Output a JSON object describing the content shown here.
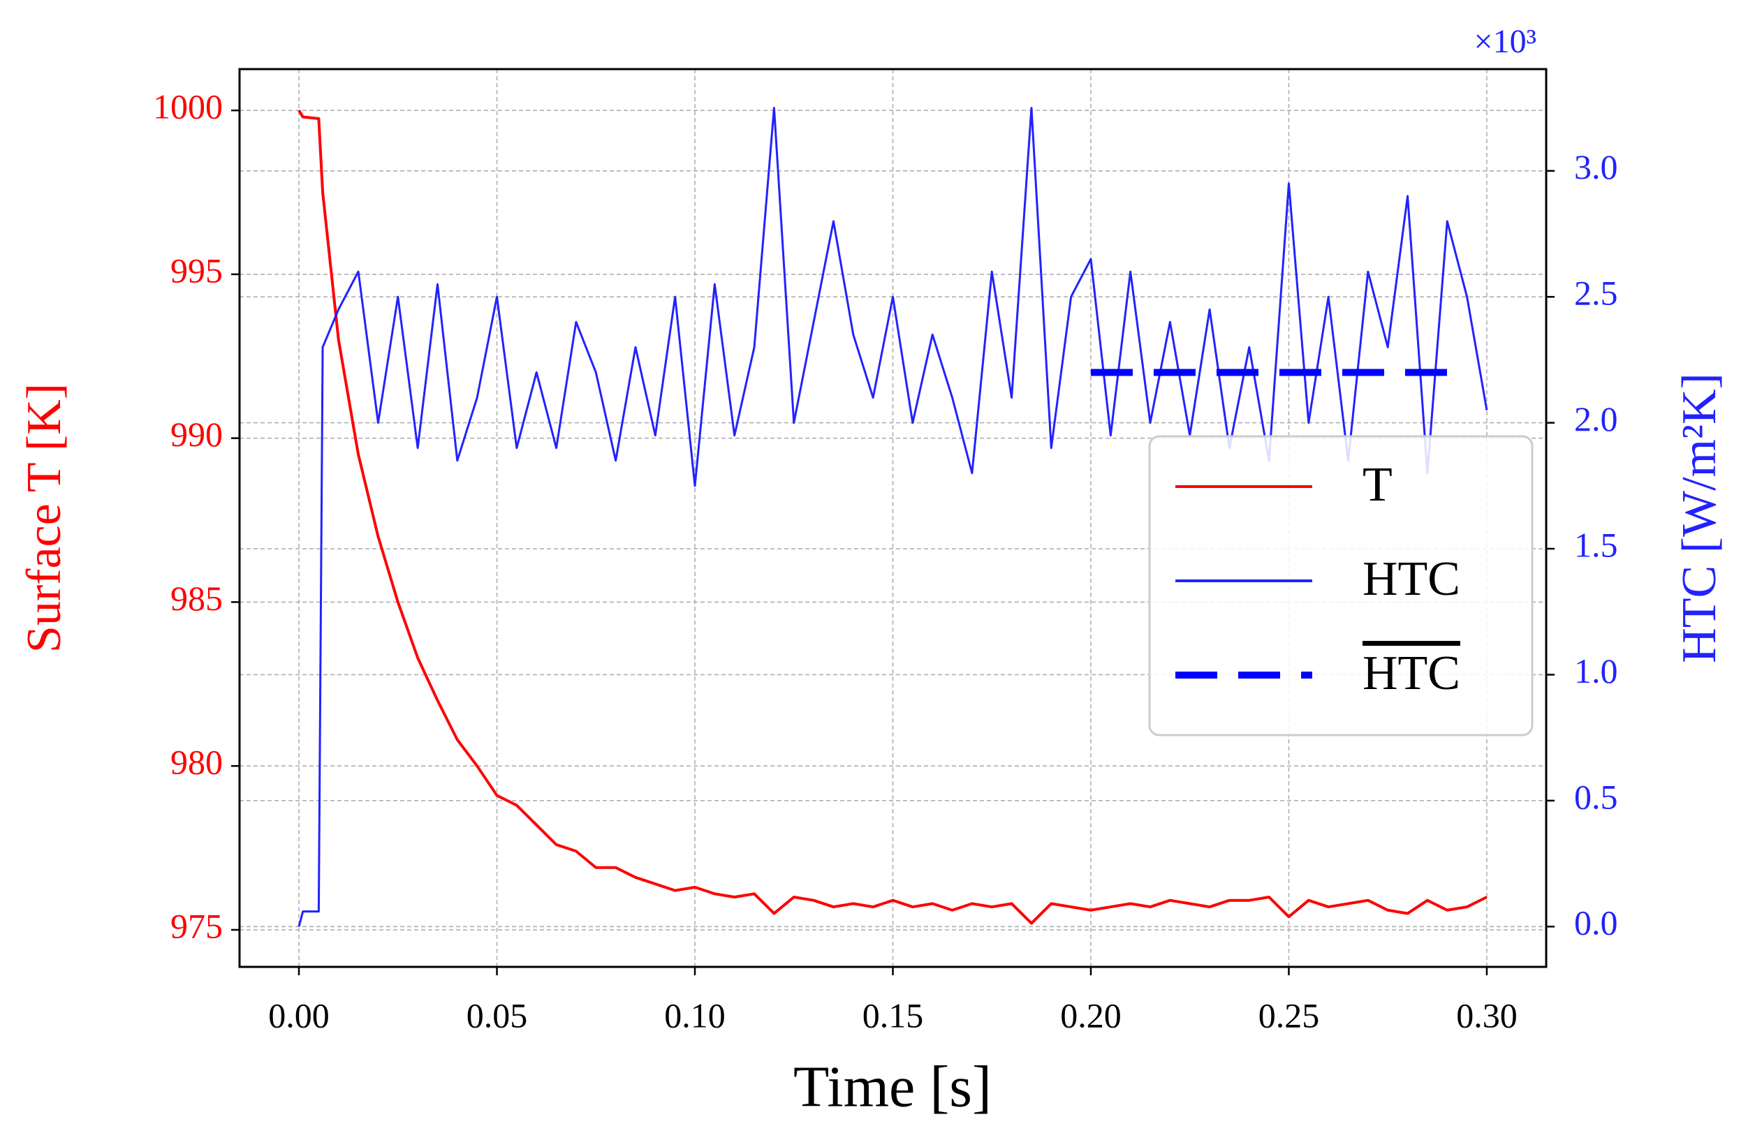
{
  "chart_data": {
    "type": "line",
    "xlabel": "Time [s]",
    "ylabel": "Surface T [K]",
    "y2label": "HTC [W/m²K]",
    "y2_offset_text": "×10³",
    "x": [
      0,
      0.001,
      0.005,
      0.006,
      0.01,
      0.015,
      0.02,
      0.025,
      0.03,
      0.035,
      0.04,
      0.045,
      0.05,
      0.055,
      0.06,
      0.065,
      0.07,
      0.075,
      0.08,
      0.085,
      0.09,
      0.095,
      0.1,
      0.105,
      0.11,
      0.115,
      0.12,
      0.125,
      0.13,
      0.135,
      0.14,
      0.145,
      0.15,
      0.155,
      0.16,
      0.165,
      0.17,
      0.175,
      0.18,
      0.185,
      0.19,
      0.195,
      0.2,
      0.205,
      0.21,
      0.215,
      0.22,
      0.225,
      0.23,
      0.235,
      0.24,
      0.245,
      0.25,
      0.255,
      0.26,
      0.265,
      0.27,
      0.275,
      0.28,
      0.285,
      0.29,
      0.295,
      0.3
    ],
    "series": [
      {
        "name": "T",
        "color": "#ff0000",
        "style": "solid",
        "values": [
          1000,
          999.8,
          999.75,
          997.5,
          993.0,
          989.5,
          987.0,
          985.0,
          983.3,
          982.0,
          980.8,
          980.0,
          979.1,
          978.8,
          978.2,
          977.6,
          977.4,
          976.9,
          976.9,
          976.6,
          976.4,
          976.2,
          976.3,
          976.1,
          976.0,
          976.1,
          975.5,
          976.0,
          975.9,
          975.7,
          975.8,
          975.7,
          975.9,
          975.7,
          975.8,
          975.6,
          975.8,
          975.7,
          975.8,
          975.2,
          975.8,
          975.7,
          975.6,
          975.7,
          975.8,
          975.7,
          975.9,
          975.8,
          975.7,
          975.9,
          975.9,
          976.0,
          975.4,
          975.9,
          975.7,
          975.8,
          975.9,
          975.6,
          975.5,
          975.9,
          975.6,
          975.7,
          976.0
        ]
      },
      {
        "name": "HTC",
        "color": "#2222ff",
        "style": "solid",
        "axis": "y2",
        "values": [
          0.0,
          0.06,
          0.06,
          2.3,
          2.45,
          2.6,
          2.0,
          2.5,
          1.9,
          2.55,
          1.85,
          2.1,
          2.5,
          1.9,
          2.2,
          1.9,
          2.4,
          2.2,
          1.85,
          2.3,
          1.95,
          2.5,
          1.75,
          2.55,
          1.95,
          2.3,
          3.25,
          2.0,
          2.4,
          2.8,
          2.35,
          2.1,
          2.5,
          2.0,
          2.35,
          2.1,
          1.8,
          2.6,
          2.1,
          3.25,
          1.9,
          2.5,
          2.65,
          1.95,
          2.6,
          2.0,
          2.4,
          1.95,
          2.45,
          1.9,
          2.3,
          1.85,
          2.95,
          2.0,
          2.5,
          1.85,
          2.6,
          2.3,
          2.9,
          1.8,
          2.8,
          2.5,
          2.05
        ]
      },
      {
        "name": "HTC",
        "name_overline": true,
        "color": "#0000ff",
        "style": "dashed",
        "axis": "y2",
        "x": [
          0.2,
          0.295
        ],
        "values": [
          2.2,
          2.2
        ]
      }
    ],
    "xlim": [
      -0.015,
      0.315
    ],
    "xticks": [
      {
        "value": 0,
        "label": "0.00"
      },
      {
        "value": 0.05,
        "label": "0.05"
      },
      {
        "value": 0.1,
        "label": "0.10"
      },
      {
        "value": 0.15,
        "label": "0.15"
      },
      {
        "value": 0.2,
        "label": "0.20"
      },
      {
        "value": 0.25,
        "label": "0.25"
      },
      {
        "value": 0.3,
        "label": "0.30"
      }
    ],
    "ylim": [
      973.87,
      1001.26
    ],
    "yticks": [
      975,
      980,
      985,
      990,
      995,
      1000
    ],
    "y2lim": [
      -0.16,
      3.404
    ],
    "y2ticks": [
      {
        "value": 0,
        "label": "0.0"
      },
      0.5,
      {
        "value": 1,
        "label": "1.0"
      },
      1.5,
      {
        "value": 2,
        "label": "2.0"
      },
      2.5,
      {
        "value": 3,
        "label": "3.0"
      }
    ],
    "grid": true,
    "legend": "center right"
  }
}
